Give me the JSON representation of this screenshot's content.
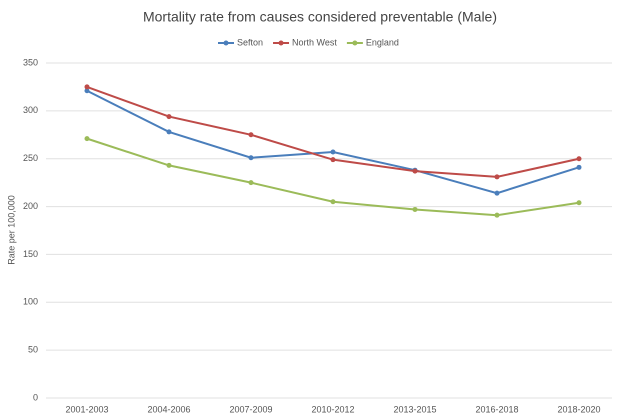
{
  "chart_data": {
    "type": "line",
    "title": "Mortality rate from causes considered preventable (Male)",
    "y_label": "Rate per 100,000",
    "categories": [
      "2001-2003",
      "2004-2006",
      "2007-2009",
      "2010-2012",
      "2013-2015",
      "2016-2018",
      "2018-2020"
    ],
    "series": [
      {
        "name": "Sefton",
        "color": "#4a7ebb",
        "values": [
          321,
          278,
          251,
          257,
          238,
          214,
          241
        ]
      },
      {
        "name": "North West",
        "color": "#be4b48",
        "values": [
          325,
          294,
          275,
          249,
          237,
          231,
          250
        ]
      },
      {
        "name": "England",
        "color": "#9bbb59",
        "values": [
          271,
          243,
          225,
          205,
          197,
          191,
          204
        ]
      }
    ],
    "ylim": [
      0,
      350
    ],
    "yticks": [
      0,
      50,
      100,
      150,
      200,
      250,
      300,
      350
    ],
    "grid": true
  }
}
